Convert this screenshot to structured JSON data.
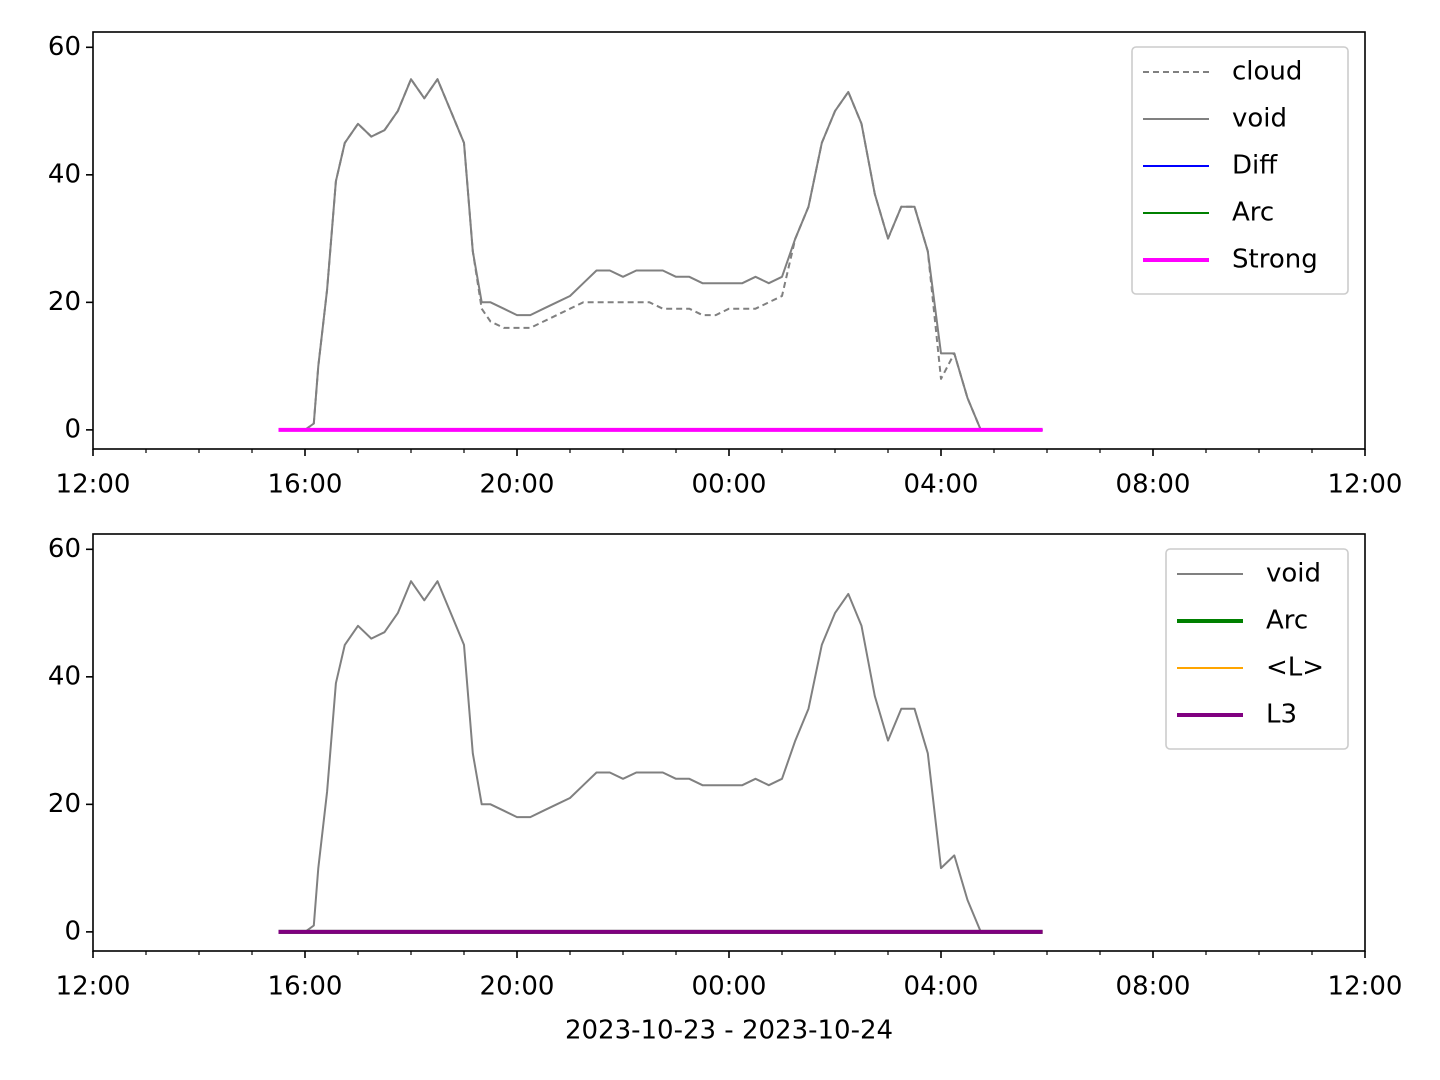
{
  "chart_data": [
    {
      "type": "line",
      "legend": "upper right",
      "xlim": [
        "12:00",
        "12:00"
      ],
      "ylim": [
        -3,
        62.4
      ],
      "xticks": [
        "12:00",
        "16:00",
        "20:00",
        "00:00",
        "04:00",
        "08:00",
        "12:00"
      ],
      "xminorticks": [
        "13:00",
        "14:00",
        "15:00",
        "17:00",
        "18:00",
        "19:00",
        "21:00",
        "22:00",
        "23:00",
        "01:00",
        "02:00",
        "03:00",
        "05:00",
        "06:00",
        "07:00",
        "09:00",
        "10:00",
        "11:00"
      ],
      "yticks": [
        0,
        20,
        40,
        60
      ],
      "x": [
        "16:00",
        "16:10",
        "16:15",
        "16:25",
        "16:35",
        "16:45",
        "17:00",
        "17:15",
        "17:30",
        "17:45",
        "18:00",
        "18:15",
        "18:30",
        "18:45",
        "19:00",
        "19:10",
        "19:20",
        "19:30",
        "19:45",
        "20:00",
        "20:15",
        "20:30",
        "20:45",
        "21:00",
        "21:15",
        "21:30",
        "21:45",
        "22:00",
        "22:15",
        "22:30",
        "22:45",
        "23:00",
        "23:15",
        "23:30",
        "23:45",
        "00:00",
        "00:15",
        "00:30",
        "00:45",
        "01:00",
        "01:15",
        "01:30",
        "01:45",
        "02:00",
        "02:15",
        "02:30",
        "02:45",
        "03:00",
        "03:15",
        "03:30",
        "03:45",
        "04:00",
        "04:15",
        "04:30",
        "04:45"
      ],
      "series": [
        {
          "name": "cloud",
          "color": "#808080",
          "linestyle": "dashed",
          "linewidth": 2,
          "values": [
            0,
            1,
            10,
            22,
            39,
            45,
            48,
            46,
            47,
            50,
            55,
            52,
            55,
            50,
            45,
            28,
            19,
            17,
            16,
            16,
            16,
            17,
            18,
            19,
            20,
            20,
            20,
            20,
            20,
            20,
            19,
            19,
            19,
            18,
            18,
            19,
            19,
            19,
            20,
            21,
            30,
            35,
            45,
            50,
            53,
            48,
            37,
            30,
            35,
            35,
            28,
            8,
            12,
            5,
            0
          ]
        },
        {
          "name": "void",
          "color": "#808080",
          "linestyle": "solid",
          "linewidth": 2,
          "values": [
            0,
            1,
            10,
            22,
            39,
            45,
            48,
            46,
            47,
            50,
            55,
            52,
            55,
            50,
            45,
            28,
            20,
            20,
            19,
            18,
            18,
            19,
            20,
            21,
            23,
            25,
            25,
            24,
            25,
            25,
            25,
            24,
            24,
            23,
            23,
            23,
            23,
            24,
            23,
            24,
            30,
            35,
            45,
            50,
            53,
            48,
            37,
            30,
            35,
            35,
            28,
            12,
            12,
            5,
            0
          ]
        },
        {
          "name": "Diff",
          "color": "#0000ff",
          "linestyle": "solid",
          "linewidth": 2,
          "x": [
            "15:30",
            "05:55"
          ],
          "values": [
            0,
            0
          ]
        },
        {
          "name": "Arc",
          "color": "#008000",
          "linestyle": "solid",
          "linewidth": 2,
          "x": [
            "15:30",
            "05:55"
          ],
          "values": [
            0,
            0
          ]
        },
        {
          "name": "Strong",
          "color": "#ff00ff",
          "linestyle": "solid",
          "linewidth": 4,
          "x": [
            "15:30",
            "05:55"
          ],
          "values": [
            0,
            0
          ]
        }
      ]
    },
    {
      "type": "line",
      "legend": "upper right",
      "xlabel": "2023-10-23 - 2023-10-24",
      "xlim": [
        "12:00",
        "12:00"
      ],
      "ylim": [
        -3,
        62.4
      ],
      "xticks": [
        "12:00",
        "16:00",
        "20:00",
        "00:00",
        "04:00",
        "08:00",
        "12:00"
      ],
      "xminorticks": [
        "13:00",
        "14:00",
        "15:00",
        "17:00",
        "18:00",
        "19:00",
        "21:00",
        "22:00",
        "23:00",
        "01:00",
        "02:00",
        "03:00",
        "05:00",
        "06:00",
        "07:00",
        "09:00",
        "10:00",
        "11:00"
      ],
      "yticks": [
        0,
        20,
        40,
        60
      ],
      "x": [
        "16:00",
        "16:10",
        "16:15",
        "16:25",
        "16:35",
        "16:45",
        "17:00",
        "17:15",
        "17:30",
        "17:45",
        "18:00",
        "18:15",
        "18:30",
        "18:45",
        "19:00",
        "19:10",
        "19:20",
        "19:30",
        "19:45",
        "20:00",
        "20:15",
        "20:30",
        "20:45",
        "21:00",
        "21:15",
        "21:30",
        "21:45",
        "22:00",
        "22:15",
        "22:30",
        "22:45",
        "23:00",
        "23:15",
        "23:30",
        "23:45",
        "00:00",
        "00:15",
        "00:30",
        "00:45",
        "01:00",
        "01:15",
        "01:30",
        "01:45",
        "02:00",
        "02:15",
        "02:30",
        "02:45",
        "03:00",
        "03:15",
        "03:30",
        "03:45",
        "04:00",
        "04:15",
        "04:30",
        "04:45"
      ],
      "series": [
        {
          "name": "void",
          "color": "#808080",
          "linestyle": "solid",
          "linewidth": 2,
          "values": [
            0,
            1,
            10,
            22,
            39,
            45,
            48,
            46,
            47,
            50,
            55,
            52,
            55,
            50,
            45,
            28,
            20,
            20,
            19,
            18,
            18,
            19,
            20,
            21,
            23,
            25,
            25,
            24,
            25,
            25,
            25,
            24,
            24,
            23,
            23,
            23,
            23,
            24,
            23,
            24,
            30,
            35,
            45,
            50,
            53,
            48,
            37,
            30,
            35,
            35,
            28,
            10,
            12,
            5,
            0
          ]
        },
        {
          "name": "Arc",
          "color": "#008000",
          "linestyle": "solid",
          "linewidth": 4,
          "x": [
            "15:30",
            "05:55"
          ],
          "values": [
            0,
            0
          ]
        },
        {
          "name": "<L>",
          "color": "#ffa500",
          "linestyle": "solid",
          "linewidth": 2,
          "x": [
            "15:30",
            "05:55"
          ],
          "values": [
            0,
            0
          ]
        },
        {
          "name": "L3",
          "color": "#800080",
          "linestyle": "solid",
          "linewidth": 4,
          "x": [
            "15:30",
            "05:55"
          ],
          "values": [
            0,
            0
          ]
        }
      ]
    }
  ]
}
